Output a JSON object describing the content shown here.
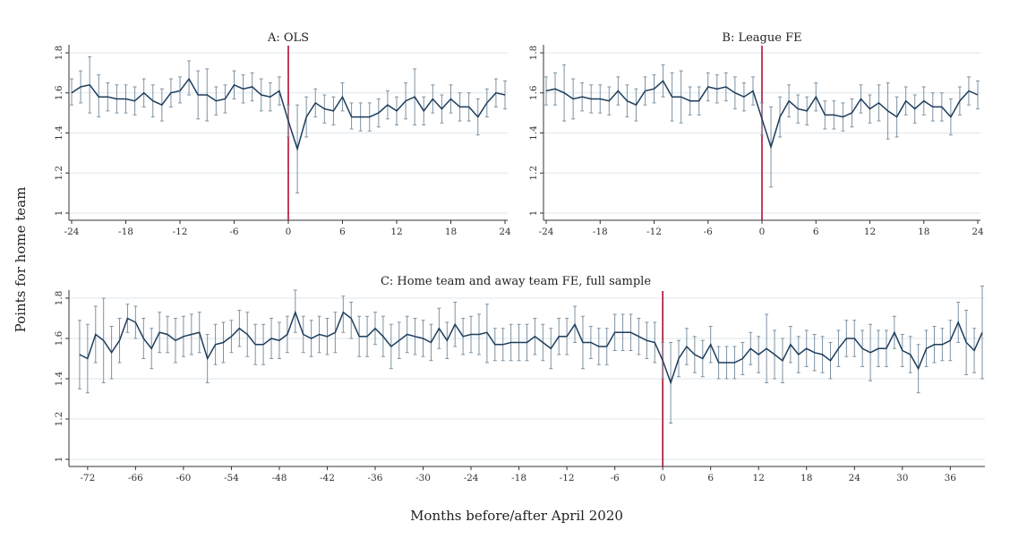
{
  "figure": {
    "ylabel": "Points for home team",
    "xlabel": "Months before/after April 2020"
  },
  "colors": {
    "series": "#1d3c5c",
    "ci": "#7e93a3",
    "event_line": "#b01030",
    "grid": "#dde7ec"
  },
  "chart_data": [
    {
      "type": "line",
      "title": "A: OLS",
      "xlim": [
        -24,
        24
      ],
      "ylim": [
        1,
        1.8
      ],
      "xticks": [
        -24,
        -18,
        -12,
        -6,
        0,
        6,
        12,
        18,
        24
      ],
      "yticks": [
        1,
        1.2,
        1.4,
        1.6,
        1.8
      ],
      "grid": true,
      "event_x": 0,
      "x": [
        -24,
        -23,
        -22,
        -21,
        -20,
        -19,
        -18,
        -17,
        -16,
        -15,
        -14,
        -13,
        -12,
        -11,
        -10,
        -9,
        -8,
        -7,
        -6,
        -5,
        -4,
        -3,
        -2,
        -1,
        0,
        1,
        2,
        3,
        4,
        5,
        6,
        7,
        8,
        9,
        10,
        11,
        12,
        13,
        14,
        15,
        16,
        17,
        18,
        19,
        20,
        21,
        22,
        23,
        24
      ],
      "values": [
        1.6,
        1.63,
        1.64,
        1.58,
        1.58,
        1.57,
        1.57,
        1.56,
        1.6,
        1.56,
        1.54,
        1.6,
        1.61,
        1.67,
        1.59,
        1.59,
        1.56,
        1.57,
        1.64,
        1.62,
        1.63,
        1.59,
        1.58,
        1.61,
        1.46,
        1.32,
        1.48,
        1.55,
        1.52,
        1.51,
        1.58,
        1.48,
        1.48,
        1.48,
        1.5,
        1.54,
        1.51,
        1.56,
        1.58,
        1.51,
        1.57,
        1.52,
        1.57,
        1.53,
        1.53,
        1.48,
        1.55,
        1.6,
        1.59
      ],
      "ci_low": [
        1.54,
        1.55,
        1.5,
        1.48,
        1.51,
        1.5,
        1.5,
        1.49,
        1.53,
        1.48,
        1.46,
        1.53,
        1.55,
        1.59,
        1.47,
        1.46,
        1.49,
        1.5,
        1.57,
        1.55,
        1.56,
        1.51,
        1.51,
        1.54,
        1.38,
        1.1,
        1.38,
        1.48,
        1.45,
        1.44,
        1.51,
        1.42,
        1.41,
        1.41,
        1.43,
        1.47,
        1.44,
        1.47,
        1.44,
        1.44,
        1.5,
        1.45,
        1.5,
        1.46,
        1.46,
        1.39,
        1.48,
        1.53,
        1.52
      ],
      "ci_high": [
        1.67,
        1.71,
        1.78,
        1.69,
        1.65,
        1.64,
        1.64,
        1.63,
        1.67,
        1.64,
        1.62,
        1.67,
        1.68,
        1.76,
        1.71,
        1.72,
        1.63,
        1.64,
        1.71,
        1.69,
        1.7,
        1.67,
        1.65,
        1.68,
        1.54,
        1.54,
        1.58,
        1.62,
        1.59,
        1.58,
        1.65,
        1.55,
        1.55,
        1.55,
        1.57,
        1.61,
        1.58,
        1.65,
        1.72,
        1.58,
        1.64,
        1.59,
        1.64,
        1.6,
        1.6,
        1.57,
        1.62,
        1.67,
        1.66
      ]
    },
    {
      "type": "line",
      "title": "B: League FE",
      "xlim": [
        -24,
        24
      ],
      "ylim": [
        1,
        1.8
      ],
      "xticks": [
        -24,
        -18,
        -12,
        -6,
        0,
        6,
        12,
        18,
        24
      ],
      "yticks": [
        1,
        1.2,
        1.4,
        1.6,
        1.8
      ],
      "grid": true,
      "event_x": 0,
      "x": [
        -24,
        -23,
        -22,
        -21,
        -20,
        -19,
        -18,
        -17,
        -16,
        -15,
        -14,
        -13,
        -12,
        -11,
        -10,
        -9,
        -8,
        -7,
        -6,
        -5,
        -4,
        -3,
        -2,
        -1,
        0,
        1,
        2,
        3,
        4,
        5,
        6,
        7,
        8,
        9,
        10,
        11,
        12,
        13,
        14,
        15,
        16,
        17,
        18,
        19,
        20,
        21,
        22,
        23,
        24
      ],
      "values": [
        1.61,
        1.62,
        1.6,
        1.57,
        1.58,
        1.57,
        1.57,
        1.56,
        1.61,
        1.56,
        1.54,
        1.61,
        1.62,
        1.66,
        1.58,
        1.58,
        1.56,
        1.56,
        1.63,
        1.62,
        1.63,
        1.6,
        1.58,
        1.61,
        1.47,
        1.33,
        1.48,
        1.56,
        1.52,
        1.51,
        1.58,
        1.49,
        1.49,
        1.48,
        1.5,
        1.57,
        1.52,
        1.55,
        1.51,
        1.48,
        1.56,
        1.52,
        1.56,
        1.53,
        1.53,
        1.48,
        1.56,
        1.61,
        1.59
      ],
      "ci_low": [
        1.54,
        1.54,
        1.46,
        1.47,
        1.51,
        1.5,
        1.5,
        1.49,
        1.54,
        1.48,
        1.46,
        1.54,
        1.55,
        1.58,
        1.46,
        1.45,
        1.49,
        1.49,
        1.56,
        1.55,
        1.56,
        1.52,
        1.51,
        1.54,
        1.39,
        1.13,
        1.38,
        1.48,
        1.45,
        1.44,
        1.51,
        1.42,
        1.42,
        1.41,
        1.43,
        1.5,
        1.45,
        1.46,
        1.37,
        1.38,
        1.49,
        1.45,
        1.49,
        1.46,
        1.46,
        1.39,
        1.49,
        1.54,
        1.52
      ],
      "ci_high": [
        1.68,
        1.7,
        1.74,
        1.67,
        1.65,
        1.64,
        1.64,
        1.63,
        1.68,
        1.64,
        1.62,
        1.68,
        1.69,
        1.74,
        1.7,
        1.71,
        1.63,
        1.63,
        1.7,
        1.69,
        1.7,
        1.68,
        1.65,
        1.68,
        1.55,
        1.53,
        1.58,
        1.64,
        1.59,
        1.58,
        1.65,
        1.56,
        1.56,
        1.55,
        1.57,
        1.64,
        1.59,
        1.64,
        1.65,
        1.58,
        1.63,
        1.59,
        1.63,
        1.6,
        1.6,
        1.57,
        1.63,
        1.68,
        1.66
      ]
    },
    {
      "type": "line",
      "title": "C: Home team and away team FE, full sample",
      "xlim": [
        -74,
        40
      ],
      "ylim": [
        1,
        1.8
      ],
      "xticks": [
        -72,
        -66,
        -60,
        -54,
        -48,
        -42,
        -36,
        -30,
        -24,
        -18,
        -12,
        -6,
        0,
        6,
        12,
        18,
        24,
        30,
        36
      ],
      "yticks": [
        1,
        1.2,
        1.4,
        1.6,
        1.8
      ],
      "grid": true,
      "event_x": 0,
      "x": [
        -73,
        -72,
        -71,
        -70,
        -69,
        -68,
        -67,
        -66,
        -65,
        -64,
        -63,
        -62,
        -61,
        -60,
        -59,
        -58,
        -57,
        -56,
        -55,
        -54,
        -53,
        -52,
        -51,
        -50,
        -49,
        -48,
        -47,
        -46,
        -45,
        -44,
        -43,
        -42,
        -41,
        -40,
        -39,
        -38,
        -37,
        -36,
        -35,
        -34,
        -33,
        -32,
        -31,
        -30,
        -29,
        -28,
        -27,
        -26,
        -25,
        -24,
        -23,
        -22,
        -21,
        -20,
        -19,
        -18,
        -17,
        -16,
        -15,
        -14,
        -13,
        -12,
        -11,
        -10,
        -9,
        -8,
        -7,
        -6,
        -5,
        -4,
        -3,
        -2,
        -1,
        0,
        1,
        2,
        3,
        4,
        5,
        6,
        7,
        8,
        9,
        10,
        11,
        12,
        13,
        14,
        15,
        16,
        17,
        18,
        19,
        20,
        21,
        22,
        23,
        24,
        25,
        26,
        27,
        28,
        29,
        30,
        31,
        32,
        33,
        34,
        35,
        36,
        37,
        38,
        39,
        40
      ],
      "values": [
        1.52,
        1.5,
        1.62,
        1.59,
        1.53,
        1.59,
        1.7,
        1.68,
        1.6,
        1.55,
        1.63,
        1.62,
        1.59,
        1.61,
        1.62,
        1.63,
        1.5,
        1.57,
        1.58,
        1.61,
        1.65,
        1.62,
        1.57,
        1.57,
        1.6,
        1.59,
        1.62,
        1.73,
        1.62,
        1.6,
        1.62,
        1.61,
        1.63,
        1.73,
        1.7,
        1.61,
        1.61,
        1.65,
        1.61,
        1.56,
        1.59,
        1.62,
        1.61,
        1.6,
        1.58,
        1.65,
        1.59,
        1.67,
        1.61,
        1.62,
        1.62,
        1.63,
        1.57,
        1.57,
        1.58,
        1.58,
        1.58,
        1.61,
        1.58,
        1.55,
        1.61,
        1.61,
        1.67,
        1.58,
        1.58,
        1.56,
        1.56,
        1.63,
        1.63,
        1.63,
        1.61,
        1.59,
        1.58,
        1.49,
        1.38,
        1.5,
        1.56,
        1.52,
        1.5,
        1.57,
        1.48,
        1.48,
        1.48,
        1.5,
        1.55,
        1.52,
        1.55,
        1.52,
        1.49,
        1.57,
        1.52,
        1.55,
        1.53,
        1.52,
        1.49,
        1.55,
        1.6,
        1.6,
        1.55,
        1.53,
        1.55,
        1.55,
        1.63,
        1.54,
        1.52,
        1.45,
        1.55,
        1.57,
        1.57,
        1.59,
        1.68,
        1.58,
        1.54,
        1.63
      ],
      "ci_low": [
        1.35,
        1.33,
        1.48,
        1.38,
        1.4,
        1.48,
        1.63,
        1.6,
        1.5,
        1.45,
        1.53,
        1.53,
        1.48,
        1.51,
        1.52,
        1.53,
        1.38,
        1.47,
        1.48,
        1.53,
        1.56,
        1.51,
        1.47,
        1.47,
        1.5,
        1.5,
        1.53,
        1.63,
        1.53,
        1.51,
        1.53,
        1.52,
        1.53,
        1.63,
        1.6,
        1.51,
        1.51,
        1.57,
        1.51,
        1.45,
        1.5,
        1.53,
        1.52,
        1.51,
        1.49,
        1.55,
        1.5,
        1.56,
        1.52,
        1.53,
        1.52,
        1.48,
        1.49,
        1.49,
        1.49,
        1.49,
        1.49,
        1.52,
        1.49,
        1.45,
        1.52,
        1.52,
        1.58,
        1.45,
        1.5,
        1.47,
        1.47,
        1.54,
        1.54,
        1.54,
        1.52,
        1.5,
        1.48,
        1.4,
        1.18,
        1.41,
        1.47,
        1.43,
        1.41,
        1.48,
        1.4,
        1.4,
        1.4,
        1.42,
        1.47,
        1.43,
        1.38,
        1.4,
        1.38,
        1.48,
        1.43,
        1.46,
        1.44,
        1.43,
        1.4,
        1.46,
        1.51,
        1.51,
        1.46,
        1.39,
        1.46,
        1.46,
        1.55,
        1.46,
        1.43,
        1.33,
        1.46,
        1.48,
        1.49,
        1.49,
        1.58,
        1.42,
        1.43,
        1.4
      ],
      "ci_high": [
        1.69,
        1.67,
        1.76,
        1.8,
        1.66,
        1.7,
        1.77,
        1.76,
        1.7,
        1.65,
        1.73,
        1.71,
        1.7,
        1.71,
        1.72,
        1.73,
        1.62,
        1.67,
        1.68,
        1.69,
        1.74,
        1.73,
        1.67,
        1.67,
        1.7,
        1.68,
        1.71,
        1.84,
        1.71,
        1.69,
        1.71,
        1.7,
        1.73,
        1.81,
        1.78,
        1.71,
        1.71,
        1.73,
        1.71,
        1.67,
        1.68,
        1.71,
        1.7,
        1.69,
        1.67,
        1.75,
        1.68,
        1.78,
        1.7,
        1.71,
        1.72,
        1.77,
        1.65,
        1.65,
        1.67,
        1.67,
        1.67,
        1.7,
        1.67,
        1.65,
        1.7,
        1.7,
        1.76,
        1.71,
        1.66,
        1.65,
        1.65,
        1.72,
        1.72,
        1.72,
        1.7,
        1.68,
        1.68,
        1.58,
        1.58,
        1.59,
        1.65,
        1.61,
        1.59,
        1.66,
        1.56,
        1.56,
        1.56,
        1.58,
        1.63,
        1.61,
        1.72,
        1.64,
        1.6,
        1.66,
        1.61,
        1.64,
        1.62,
        1.61,
        1.58,
        1.64,
        1.69,
        1.69,
        1.64,
        1.67,
        1.64,
        1.64,
        1.71,
        1.62,
        1.61,
        1.57,
        1.64,
        1.66,
        1.65,
        1.69,
        1.78,
        1.74,
        1.65,
        1.86
      ]
    }
  ]
}
